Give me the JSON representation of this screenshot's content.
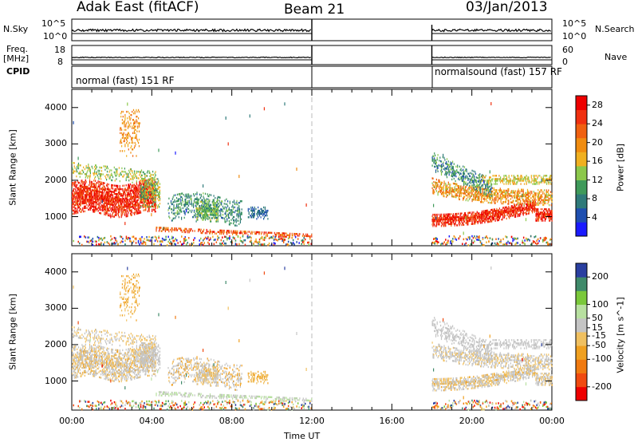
{
  "header": {
    "title": "Adak East (fitACF)",
    "beam": "Beam 21",
    "date": "03/Jan/2013"
  },
  "strips": {
    "nsky_label": "N.Sky",
    "nsky_ticks": [
      "10^5",
      "10^0"
    ],
    "nsearch_label": "N.Search",
    "freq_label_line1": "Freq.",
    "freq_label_line2": "[MHz]",
    "freq_ticks": [
      "18",
      "8"
    ],
    "nave_label": "Nave",
    "nave_ticks": [
      "60",
      "0"
    ],
    "cpid_label": "CPID",
    "cpid_mode1": "normal (fast) 151 RF",
    "cpid_mode2": "normalsound (fast) 157 RF"
  },
  "colors": {
    "power_scale": [
      "#1a1aff",
      "#1f4fb0",
      "#2f7a7a",
      "#3f9a5a",
      "#8cc84b",
      "#f0b020",
      "#f08c10",
      "#f06010",
      "#f03010",
      "#ee0000"
    ],
    "velocity_scale": [
      "#2a3fa0",
      "#3f8a6a",
      "#7ac83a",
      "#b8e0a0",
      "#c4c4c4",
      "#f0c060",
      "#f0a020",
      "#f07a10",
      "#f04a10",
      "#ee0000"
    ]
  },
  "chart_data": [
    {
      "type": "heatmap",
      "title": "Power",
      "ylabel": "Slant Range [km]",
      "xlabel": "",
      "yticks": [
        "1000",
        "2000",
        "3000",
        "4000"
      ],
      "ylim": [
        200,
        4500
      ],
      "xlim_hours": [
        0,
        24
      ],
      "colorbar_label": "Power [dB]",
      "colorbar_ticks": [
        "4",
        "8",
        "12",
        "16",
        "20",
        "24",
        "28"
      ],
      "colorbar_range": [
        0,
        30
      ]
    },
    {
      "type": "heatmap",
      "title": "Velocity",
      "ylabel": "Slant Range [km]",
      "xlabel": "Time UT",
      "xticks": [
        "00:00",
        "04:00",
        "08:00",
        "12:00",
        "16:00",
        "20:00",
        "00:00"
      ],
      "yticks": [
        "1000",
        "2000",
        "3000",
        "4000"
      ],
      "ylim": [
        200,
        4500
      ],
      "xlim_hours": [
        0,
        24
      ],
      "colorbar_label": "Velocity [m s^-1]",
      "colorbar_ticks": [
        "200",
        "100",
        "50",
        "15",
        "-15",
        "-50",
        "-100",
        "-200"
      ],
      "colorbar_range": [
        -250,
        250
      ]
    }
  ]
}
